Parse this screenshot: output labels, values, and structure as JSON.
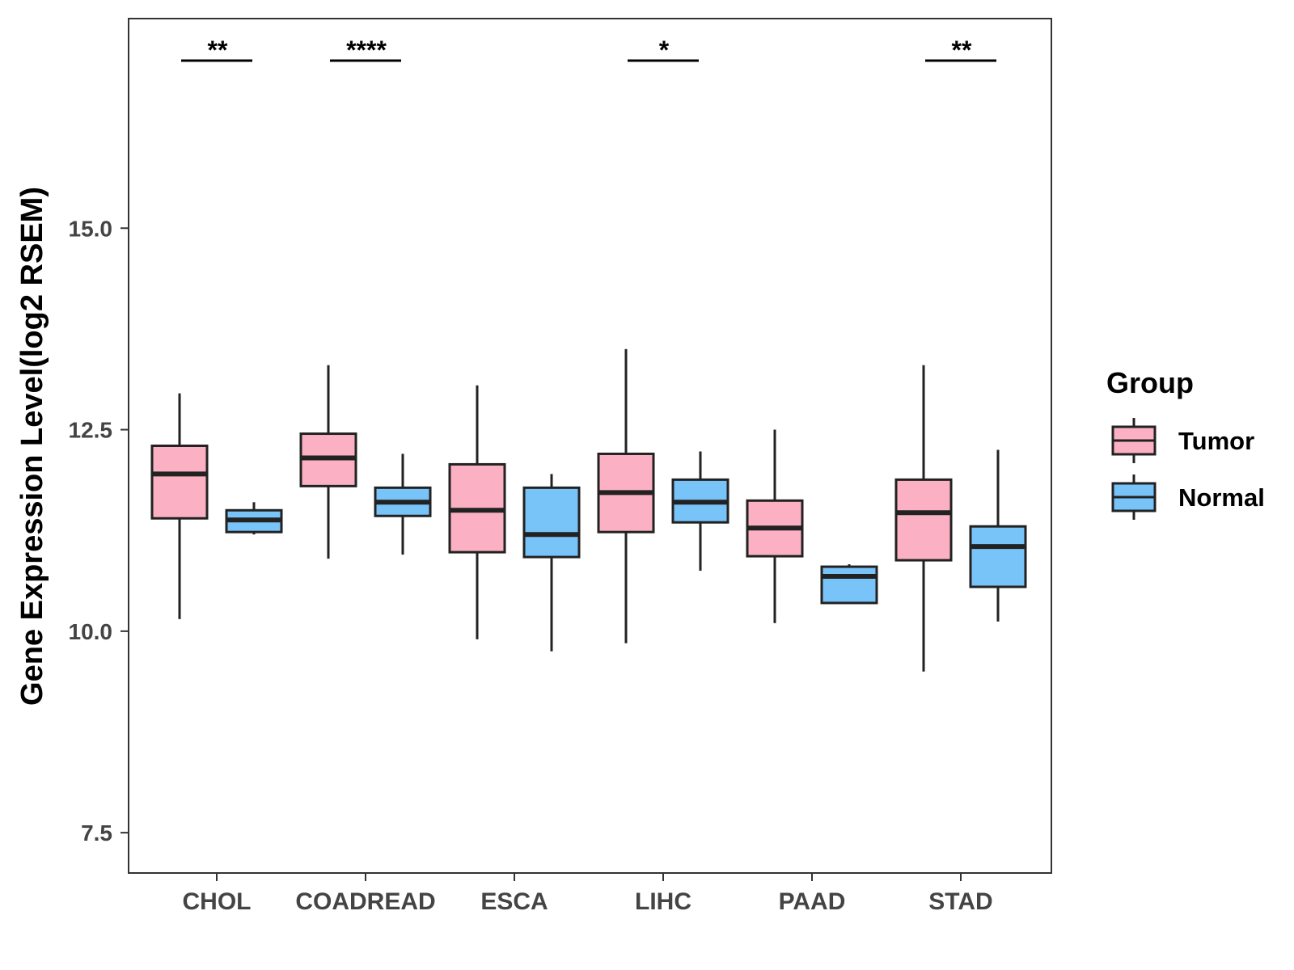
{
  "chart_data": {
    "type": "boxplot",
    "title": "",
    "xlabel": "",
    "ylabel": "Gene Expression Level(log2 RSEM)",
    "ylim": [
      7.0,
      17.6
    ],
    "yticks": [
      7.5,
      10.0,
      12.5,
      15.0
    ],
    "ytick_labels": [
      "7.5",
      "10.0",
      "12.5",
      "15.0"
    ],
    "categories": [
      "CHOL",
      "COADREAD",
      "ESCA",
      "LIHC",
      "PAAD",
      "STAD"
    ],
    "legend": {
      "title": "Group",
      "position": "right",
      "entries": [
        "Tumor",
        "Normal"
      ]
    },
    "colors": {
      "Tumor": "#FBB1C3",
      "Normal": "#78C3F8",
      "box_stroke": "#222222",
      "axis": "#333333"
    },
    "series": [
      {
        "name": "Tumor",
        "boxes": [
          {
            "min": 10.15,
            "q1": 11.4,
            "median": 11.95,
            "q3": 12.3,
            "max": 12.95
          },
          {
            "min": 10.9,
            "q1": 11.8,
            "median": 12.15,
            "q3": 12.45,
            "max": 13.3
          },
          {
            "min": 9.9,
            "q1": 10.98,
            "median": 11.5,
            "q3": 12.07,
            "max": 13.05
          },
          {
            "min": 9.85,
            "q1": 11.23,
            "median": 11.72,
            "q3": 12.2,
            "max": 13.5
          },
          {
            "min": 10.1,
            "q1": 10.93,
            "median": 11.28,
            "q3": 11.62,
            "max": 12.5
          },
          {
            "min": 9.5,
            "q1": 10.88,
            "median": 11.47,
            "q3": 11.88,
            "max": 13.3
          }
        ]
      },
      {
        "name": "Normal",
        "boxes": [
          {
            "min": 11.2,
            "q1": 11.23,
            "median": 11.38,
            "q3": 11.5,
            "max": 11.6
          },
          {
            "min": 10.95,
            "q1": 11.43,
            "median": 11.6,
            "q3": 11.78,
            "max": 12.2
          },
          {
            "min": 9.75,
            "q1": 10.92,
            "median": 11.2,
            "q3": 11.78,
            "max": 11.95
          },
          {
            "min": 10.75,
            "q1": 11.35,
            "median": 11.6,
            "q3": 11.88,
            "max": 12.23
          },
          {
            "min": 10.35,
            "q1": 10.35,
            "median": 10.68,
            "q3": 10.8,
            "max": 10.83
          },
          {
            "min": 10.12,
            "q1": 10.55,
            "median": 11.05,
            "q3": 11.3,
            "max": 12.25
          }
        ]
      }
    ],
    "significance": [
      {
        "category": "CHOL",
        "label": "**"
      },
      {
        "category": "COADREAD",
        "label": "****"
      },
      {
        "category": "LIHC",
        "label": "*"
      },
      {
        "category": "STAD",
        "label": "**"
      }
    ]
  }
}
